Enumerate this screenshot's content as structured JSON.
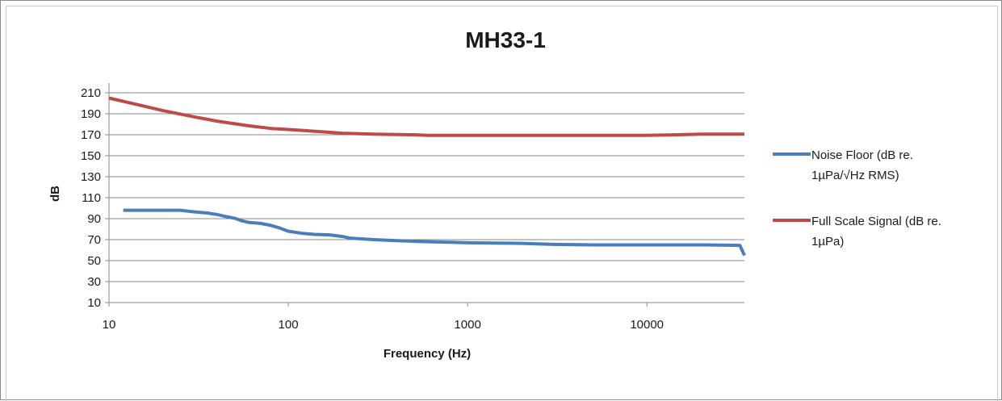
{
  "chart_data": {
    "type": "line",
    "title": "MH33-1",
    "xlabel": "Frequency (Hz)",
    "ylabel": "dB",
    "x_scale": "log",
    "xlim": [
      10,
      35000
    ],
    "ylim": [
      10,
      210
    ],
    "x_ticks": [
      "10",
      "100",
      "1000",
      "10000"
    ],
    "y_ticks": [
      "10",
      "30",
      "50",
      "70",
      "90",
      "110",
      "130",
      "150",
      "170",
      "190",
      "210"
    ],
    "grid": "horizontal",
    "legend_position": "right",
    "series": [
      {
        "name": "Noise Floor (dB re. 1µPa/√Hz RMS)",
        "legend_lines": [
          "Noise Floor (dB re.",
          "1µPa/√Hz RMS)"
        ],
        "color": "#4a7ebb",
        "points": [
          [
            12,
            98
          ],
          [
            15,
            98
          ],
          [
            20,
            98
          ],
          [
            25,
            98
          ],
          [
            30,
            96.5
          ],
          [
            35,
            95.5
          ],
          [
            40,
            94
          ],
          [
            45,
            92
          ],
          [
            50,
            90.5
          ],
          [
            55,
            88
          ],
          [
            60,
            86.5
          ],
          [
            70,
            85.5
          ],
          [
            80,
            83.5
          ],
          [
            90,
            81
          ],
          [
            100,
            78
          ],
          [
            120,
            76
          ],
          [
            140,
            75
          ],
          [
            170,
            74.5
          ],
          [
            200,
            73
          ],
          [
            220,
            71.5
          ],
          [
            300,
            70
          ],
          [
            400,
            69
          ],
          [
            600,
            68
          ],
          [
            800,
            67.5
          ],
          [
            1000,
            67
          ],
          [
            2000,
            66.5
          ],
          [
            3000,
            65.5
          ],
          [
            5000,
            65
          ],
          [
            10000,
            65
          ],
          [
            20000,
            65
          ],
          [
            33000,
            64.5
          ],
          [
            35000,
            55
          ]
        ]
      },
      {
        "name": "Full Scale Signal (dB re. 1µPa)",
        "legend_lines": [
          "Full Scale Signal (dB re.",
          "1µPa)"
        ],
        "color": "#be4b48",
        "points": [
          [
            10,
            205
          ],
          [
            15,
            198
          ],
          [
            20,
            193
          ],
          [
            30,
            187
          ],
          [
            40,
            183
          ],
          [
            60,
            178.5
          ],
          [
            80,
            176
          ],
          [
            100,
            175
          ],
          [
            150,
            173
          ],
          [
            200,
            171.5
          ],
          [
            300,
            170.5
          ],
          [
            500,
            170
          ],
          [
            600,
            169.5
          ],
          [
            1000,
            169.5
          ],
          [
            2000,
            169.5
          ],
          [
            5000,
            169.5
          ],
          [
            10000,
            169.5
          ],
          [
            15000,
            170
          ],
          [
            20000,
            170.5
          ],
          [
            35000,
            170.5
          ]
        ]
      }
    ]
  }
}
